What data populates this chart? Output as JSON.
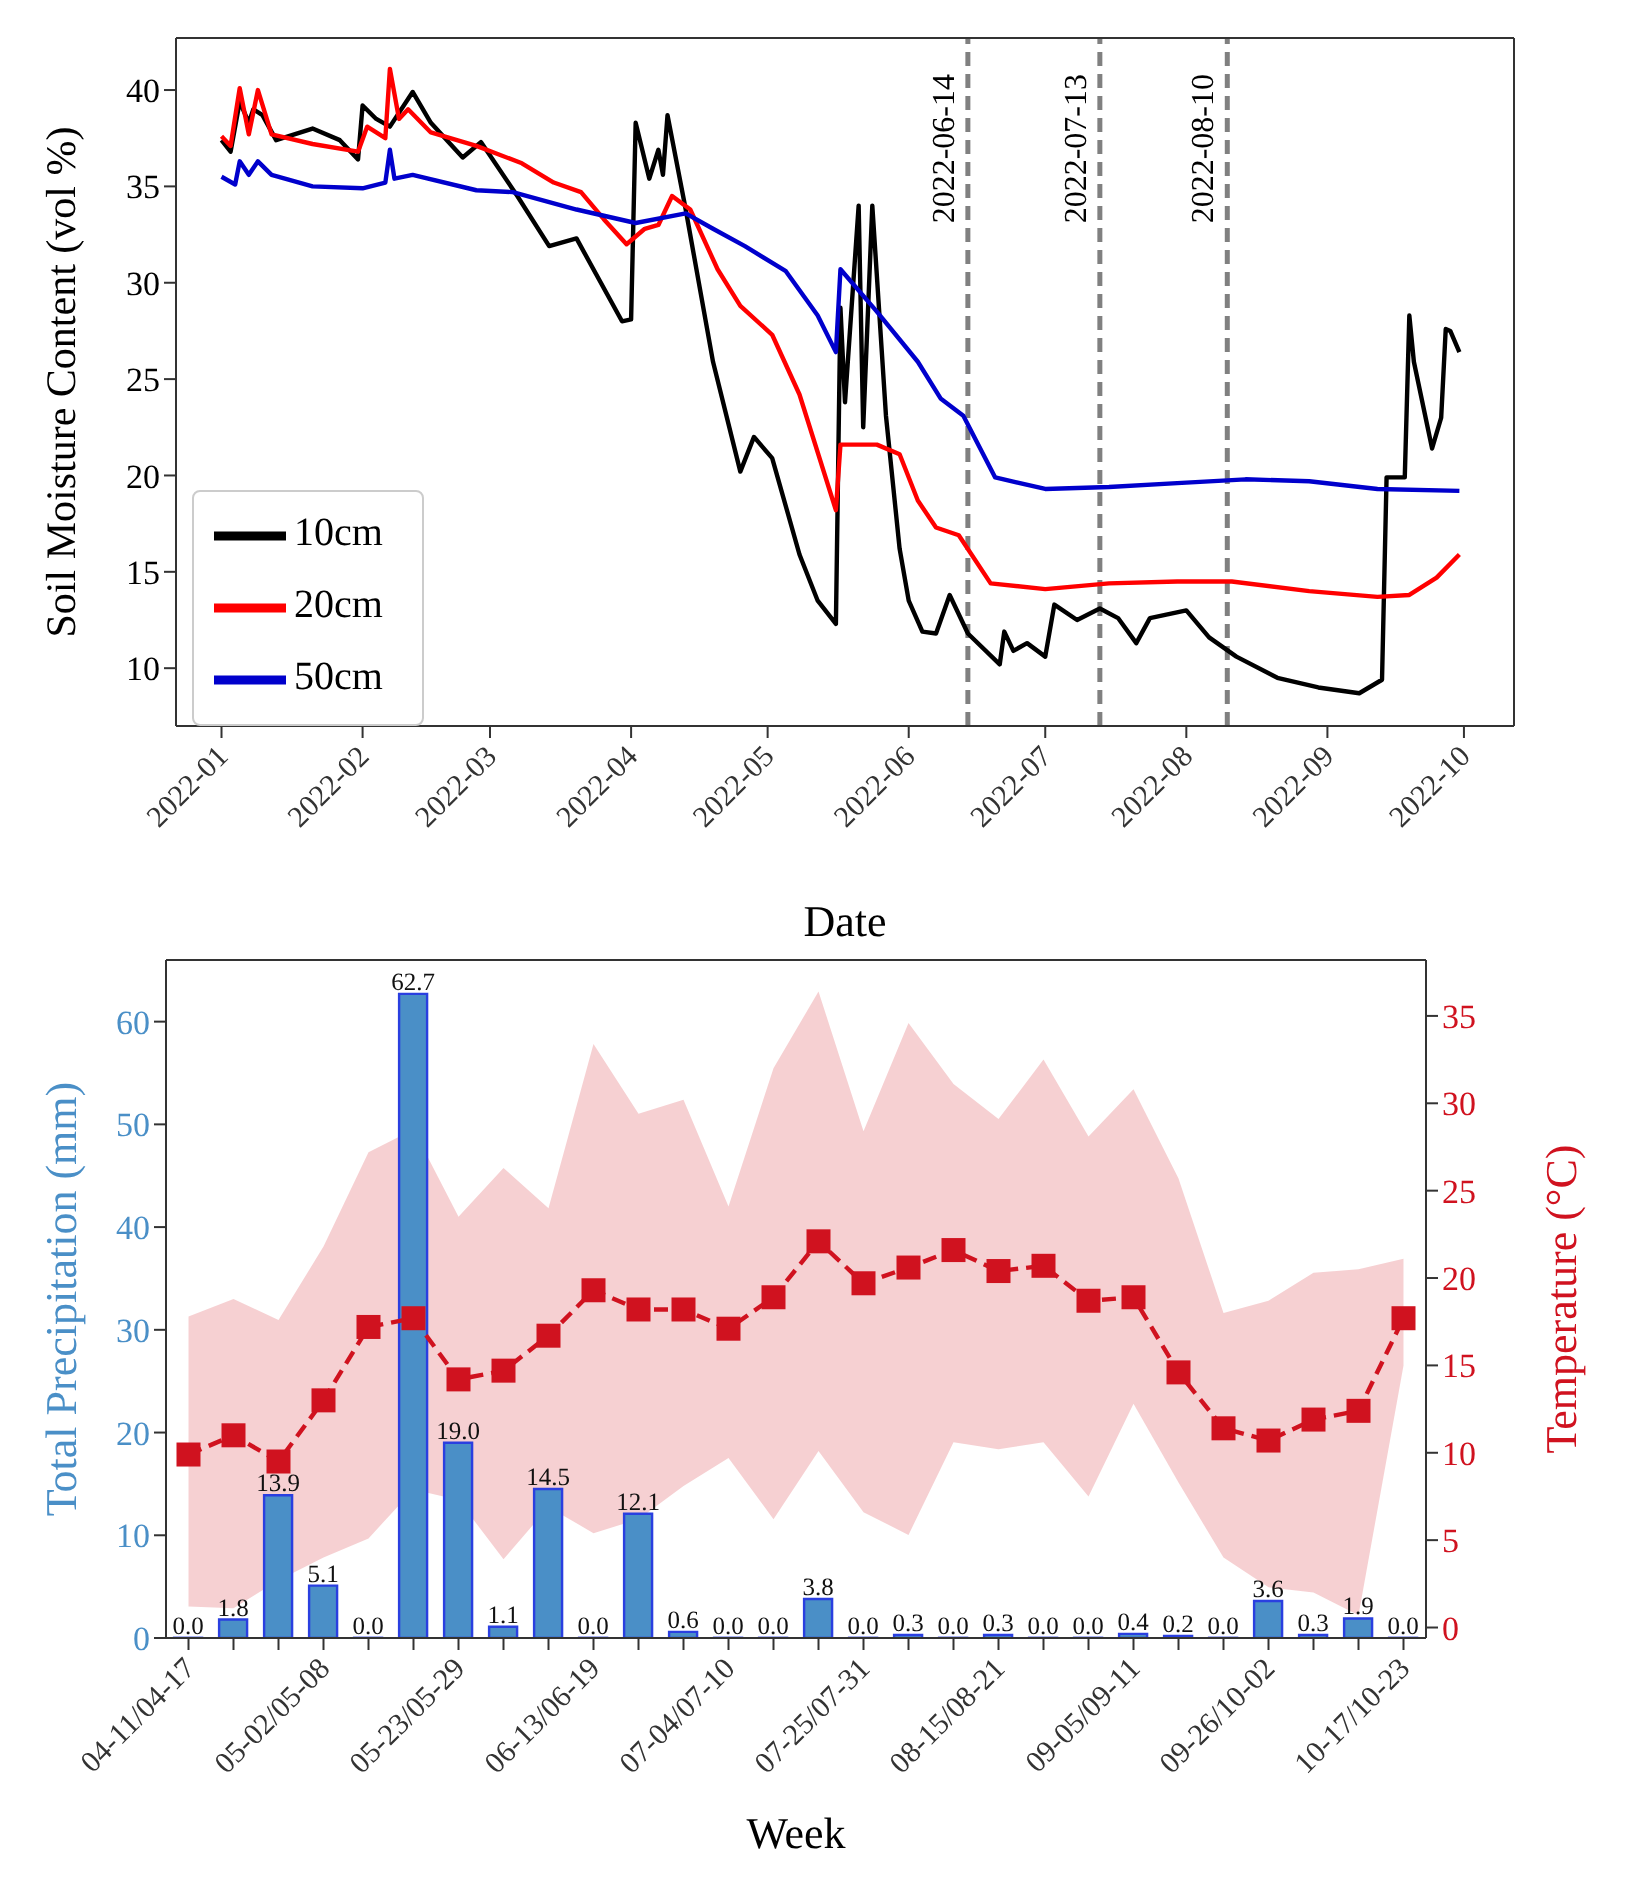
{
  "chart_data": [
    {
      "type": "line",
      "xlabel": "Date",
      "ylabel": "Soil Moisture Content (vol %)",
      "xlim": [
        "2021-12-22",
        "2022-10-12"
      ],
      "xticks": [
        "2022-01",
        "2022-02",
        "2022-03",
        "2022-04",
        "2022-05",
        "2022-06",
        "2022-07",
        "2022-08",
        "2022-09",
        "2022-10"
      ],
      "ylim": [
        7.0,
        42.7
      ],
      "yticks": [
        10,
        15,
        20,
        25,
        30,
        35,
        40
      ],
      "legend": "lower left",
      "series": [
        {
          "name": "10cm",
          "color": "#000000",
          "x": [
            "2022-01-01",
            "2022-01-03",
            "2022-01-05",
            "2022-01-07",
            "2022-01-08",
            "2022-01-10",
            "2022-01-13",
            "2022-01-21",
            "2022-01-27",
            "2022-01-31",
            "2022-02-01",
            "2022-02-04",
            "2022-02-07",
            "2022-02-12",
            "2022-02-16",
            "2022-02-23",
            "2022-02-27",
            "2022-03-07",
            "2022-03-14",
            "2022-03-20",
            "2022-03-30",
            "2022-04-01",
            "2022-04-02",
            "2022-04-05",
            "2022-04-07",
            "2022-04-08",
            "2022-04-09",
            "2022-04-13",
            "2022-04-19",
            "2022-04-25",
            "2022-04-28",
            "2022-05-02",
            "2022-05-08",
            "2022-05-12",
            "2022-05-16",
            "2022-05-17",
            "2022-05-18",
            "2022-05-21",
            "2022-05-22",
            "2022-05-24",
            "2022-05-27",
            "2022-05-30",
            "2022-06-01",
            "2022-06-04",
            "2022-06-07",
            "2022-06-10",
            "2022-06-14",
            "2022-06-21",
            "2022-06-22",
            "2022-06-24",
            "2022-06-27",
            "2022-07-01",
            "2022-07-03",
            "2022-07-08",
            "2022-07-13",
            "2022-07-17",
            "2022-07-21",
            "2022-07-24",
            "2022-08-01",
            "2022-08-06",
            "2022-08-12",
            "2022-08-21",
            "2022-08-30",
            "2022-09-08",
            "2022-09-13",
            "2022-09-14",
            "2022-09-18",
            "2022-09-19",
            "2022-09-20",
            "2022-09-24",
            "2022-09-26",
            "2022-09-27",
            "2022-09-28",
            "2022-09-30"
          ],
          "values": [
            37.4,
            36.8,
            39.4,
            38.3,
            39.0,
            38.7,
            37.4,
            38.0,
            37.4,
            36.4,
            39.2,
            38.5,
            38.1,
            39.9,
            38.3,
            36.5,
            37.3,
            34.5,
            31.9,
            32.3,
            28.0,
            28.1,
            38.3,
            35.4,
            36.9,
            35.6,
            38.7,
            33.8,
            25.9,
            20.2,
            22.0,
            20.9,
            15.9,
            13.5,
            12.3,
            28.7,
            23.8,
            34.0,
            22.5,
            34.0,
            23.1,
            16.2,
            13.5,
            11.9,
            11.8,
            13.8,
            11.8,
            10.2,
            11.9,
            10.9,
            11.3,
            10.6,
            13.3,
            12.5,
            13.1,
            12.6,
            11.3,
            12.6,
            13.0,
            11.6,
            10.6,
            9.5,
            9.0,
            8.7,
            9.4,
            19.9,
            19.9,
            28.3,
            25.9,
            21.4,
            23.0,
            27.6,
            27.5,
            26.4
          ]
        },
        {
          "name": "20cm",
          "color": "#ff0000",
          "x": [
            "2022-01-01",
            "2022-01-03",
            "2022-01-05",
            "2022-01-07",
            "2022-01-09",
            "2022-01-12",
            "2022-01-21",
            "2022-01-31",
            "2022-02-02",
            "2022-02-06",
            "2022-02-07",
            "2022-02-09",
            "2022-02-11",
            "2022-02-16",
            "2022-02-26",
            "2022-03-08",
            "2022-03-15",
            "2022-03-21",
            "2022-03-26",
            "2022-03-31",
            "2022-04-04",
            "2022-04-07",
            "2022-04-10",
            "2022-04-14",
            "2022-04-20",
            "2022-04-25",
            "2022-05-02",
            "2022-05-08",
            "2022-05-16",
            "2022-05-17",
            "2022-05-25",
            "2022-05-30",
            "2022-06-03",
            "2022-06-07",
            "2022-06-12",
            "2022-06-19",
            "2022-07-01",
            "2022-07-15",
            "2022-07-30",
            "2022-08-11",
            "2022-08-28",
            "2022-09-12",
            "2022-09-19",
            "2022-09-25",
            "2022-09-30"
          ],
          "values": [
            37.6,
            37.1,
            40.1,
            37.7,
            40.0,
            37.7,
            37.2,
            36.8,
            38.1,
            37.5,
            41.1,
            38.5,
            39.0,
            37.8,
            37.1,
            36.2,
            35.2,
            34.7,
            33.3,
            32.0,
            32.8,
            33.0,
            34.5,
            33.8,
            30.7,
            28.8,
            27.3,
            24.2,
            18.2,
            21.6,
            21.6,
            21.1,
            18.7,
            17.3,
            16.9,
            14.4,
            14.1,
            14.4,
            14.5,
            14.5,
            14.0,
            13.7,
            13.8,
            14.7,
            15.9
          ]
        },
        {
          "name": "50cm",
          "color": "#0000cc",
          "x": [
            "2022-01-01",
            "2022-01-04",
            "2022-01-05",
            "2022-01-07",
            "2022-01-09",
            "2022-01-12",
            "2022-01-21",
            "2022-02-01",
            "2022-02-06",
            "2022-02-07",
            "2022-02-08",
            "2022-02-12",
            "2022-02-26",
            "2022-03-06",
            "2022-03-20",
            "2022-04-02",
            "2022-04-13",
            "2022-04-19",
            "2022-04-26",
            "2022-05-05",
            "2022-05-12",
            "2022-05-16",
            "2022-05-17",
            "2022-05-25",
            "2022-06-03",
            "2022-06-08",
            "2022-06-13",
            "2022-06-20",
            "2022-07-01",
            "2022-07-15",
            "2022-07-30",
            "2022-08-14",
            "2022-08-28",
            "2022-09-12",
            "2022-09-30"
          ],
          "values": [
            35.5,
            35.1,
            36.3,
            35.6,
            36.3,
            35.6,
            35.0,
            34.9,
            35.2,
            36.9,
            35.4,
            35.6,
            34.8,
            34.7,
            33.8,
            33.1,
            33.6,
            32.8,
            31.9,
            30.6,
            28.3,
            26.4,
            30.7,
            28.5,
            25.9,
            24.0,
            23.1,
            19.9,
            19.3,
            19.4,
            19.6,
            19.8,
            19.7,
            19.3,
            19.2
          ]
        }
      ],
      "ref_lines": [
        {
          "axis": "x",
          "value": "2022-06-14",
          "label": "2022-06-14",
          "color": "#808080",
          "line_style": "dashed"
        },
        {
          "axis": "x",
          "value": "2022-07-13",
          "label": "2022-07-13",
          "color": "#808080",
          "line_style": "dashed"
        },
        {
          "axis": "x",
          "value": "2022-08-10",
          "label": "2022-08-10",
          "color": "#808080",
          "line_style": "dashed"
        }
      ]
    },
    {
      "type": "bar",
      "xlabel": "Week",
      "ylabel": "Total Precipitation (mm)",
      "y2label": "Temperature (°C)",
      "categories": [
        "04-11/04-17",
        null,
        null,
        "05-02/05-08",
        null,
        null,
        "05-23/05-29",
        null,
        null,
        "06-13/06-19",
        null,
        null,
        "07-04/07-10",
        null,
        null,
        "07-25/07-31",
        null,
        null,
        "08-15/08-21",
        null,
        null,
        "09-05/09-11",
        null,
        null,
        "09-26/10-02",
        null,
        null,
        "10-17/10-23"
      ],
      "ylim": [
        0,
        66
      ],
      "yticks": [
        0,
        10,
        20,
        30,
        40,
        50,
        60
      ],
      "y2lim": [
        -0.6,
        38.2
      ],
      "y2ticks": [
        0,
        5,
        10,
        15,
        20,
        25,
        30,
        35
      ],
      "series": [
        {
          "type": "bar",
          "color": "#4a8fc7",
          "values": [
            0,
            1.8,
            13.9,
            5.1,
            0,
            62.7,
            19.0,
            1.1,
            14.5,
            0,
            12.1,
            0.6,
            0,
            0,
            3.8,
            0,
            0.3,
            0,
            0.3,
            0,
            0,
            0.4,
            0.2,
            0,
            3.6,
            0.3,
            1.9,
            0
          ],
          "value_labels": [
            "0.0",
            "1.8",
            "13.9",
            "5.1",
            "0.0",
            "62.7",
            "19.0",
            "1.1",
            "14.5",
            "0.0",
            "12.1",
            "0.6",
            "0.0",
            "0.0",
            "3.8",
            "0.0",
            "0.3",
            "0.0",
            "0.3",
            "0.0",
            "0.0",
            "0.4",
            "0.2",
            "0.0",
            "3.6",
            "0.3",
            "1.9",
            "0.0"
          ]
        },
        {
          "type": "line",
          "axis": "y2",
          "color": "#d0121f",
          "marker": "square",
          "line_style": "dashed",
          "values": [
            9.9,
            11.0,
            9.5,
            13.0,
            17.2,
            17.7,
            14.2,
            14.7,
            16.7,
            19.3,
            18.2,
            18.2,
            17.1,
            18.9,
            22.1,
            19.7,
            20.6,
            21.6,
            20.4,
            20.7,
            18.7,
            18.9,
            14.6,
            11.4,
            10.7,
            11.9,
            12.4,
            17.7
          ],
          "lower": [
            1.2,
            1.1,
            2.7,
            4.0,
            5.1,
            7.9,
            7.3,
            3.9,
            6.9,
            5.4,
            6.2,
            8.1,
            9.7,
            6.2,
            10.1,
            6.6,
            5.3,
            10.6,
            10.2,
            10.6,
            7.5,
            12.8,
            8.3,
            4.0,
            2.3,
            2.0,
            0.7,
            15.0
          ],
          "upper": [
            17.8,
            18.8,
            17.6,
            21.8,
            27.2,
            28.5,
            23.5,
            26.3,
            24.0,
            33.4,
            29.4,
            30.2,
            24.1,
            32.0,
            36.4,
            28.4,
            34.6,
            31.1,
            29.1,
            32.5,
            28.1,
            30.8,
            25.7,
            18.0,
            18.7,
            20.3,
            20.5,
            21.1
          ]
        }
      ]
    }
  ]
}
